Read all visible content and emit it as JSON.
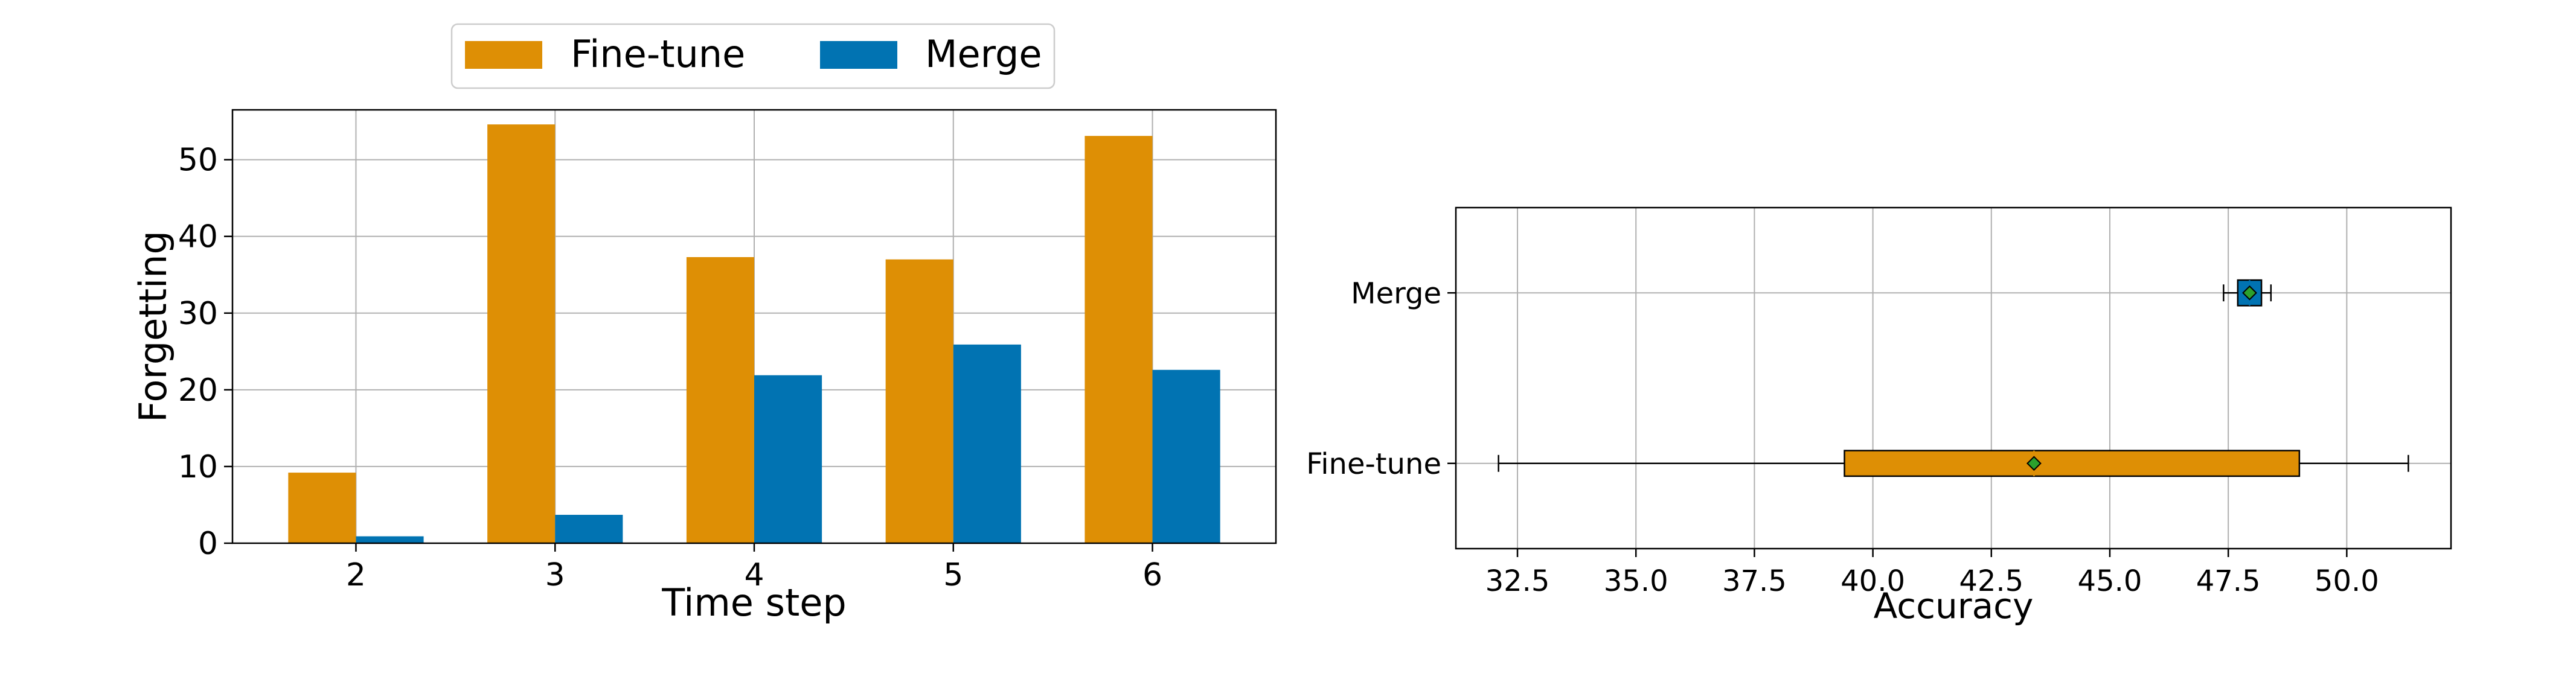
{
  "colors": {
    "finetune": "#DE8F05",
    "merge": "#0173B2",
    "grid": "#b0b0b0",
    "mean_marker": "#2ca02c"
  },
  "chart_data": [
    {
      "type": "bar",
      "xlabel": "Time step",
      "ylabel": "Forgetting",
      "categories": [
        "2",
        "3",
        "4",
        "5",
        "6"
      ],
      "series": [
        {
          "name": "Fine-tune",
          "values": [
            9.2,
            54.6,
            37.3,
            37.0,
            53.1
          ]
        },
        {
          "name": "Merge",
          "values": [
            0.9,
            3.7,
            21.9,
            25.9,
            22.6
          ]
        }
      ],
      "ylim": [
        0,
        56.5
      ],
      "yticks": [
        0,
        10,
        20,
        30,
        40,
        50
      ],
      "grid": true,
      "legend": {
        "placement": "top-center",
        "columns": 2
      }
    },
    {
      "type": "box",
      "xlabel": "Accuracy",
      "ylabel": "",
      "orientation": "horizontal",
      "categories": [
        "Fine-tune",
        "Merge"
      ],
      "boxes": [
        {
          "name": "Fine-tune",
          "whisker_low": 32.1,
          "q1": 39.4,
          "median": 43.4,
          "mean": 43.4,
          "q3": 49.0,
          "whisker_high": 51.3
        },
        {
          "name": "Merge",
          "whisker_low": 47.4,
          "q1": 47.7,
          "median": 47.95,
          "mean": 47.95,
          "q3": 48.2,
          "whisker_high": 48.4
        }
      ],
      "xlim": [
        31.2,
        52.2
      ],
      "xticks": [
        "32.5",
        "35.0",
        "37.5",
        "40.0",
        "42.5",
        "45.0",
        "47.5",
        "50.0"
      ],
      "grid": true
    }
  ]
}
